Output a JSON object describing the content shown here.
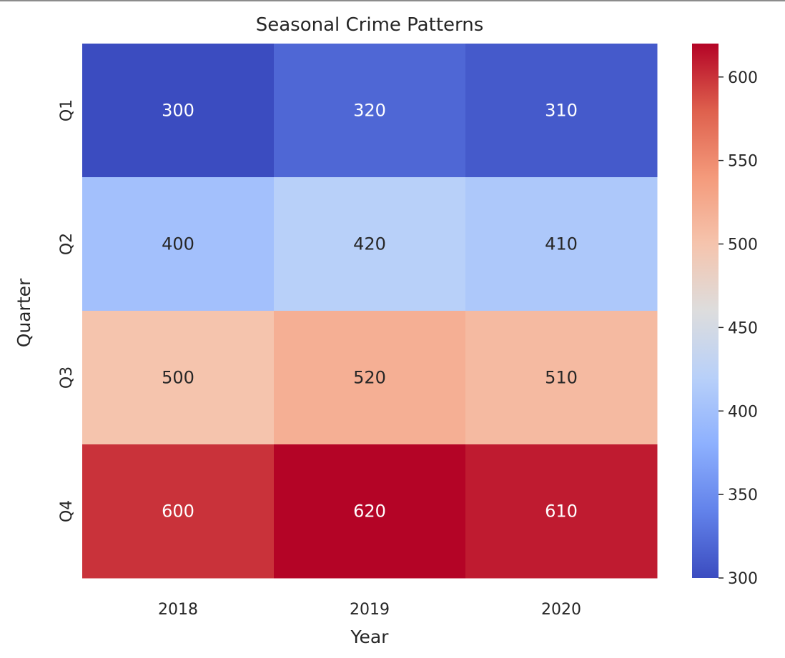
{
  "chart_data": {
    "type": "heatmap",
    "title": "Seasonal Crime Patterns",
    "xlabel": "Year",
    "ylabel": "Quarter",
    "x_categories": [
      "2018",
      "2019",
      "2020"
    ],
    "y_categories": [
      "Q1",
      "Q2",
      "Q3",
      "Q4"
    ],
    "values": [
      [
        300,
        320,
        310
      ],
      [
        400,
        420,
        410
      ],
      [
        500,
        520,
        510
      ],
      [
        600,
        620,
        610
      ]
    ],
    "colormap": "coolwarm",
    "colorbar": {
      "range": [
        300,
        620
      ],
      "ticks": [
        300,
        350,
        400,
        450,
        500,
        550,
        600
      ]
    },
    "cell_annotations": true,
    "grid": false
  }
}
